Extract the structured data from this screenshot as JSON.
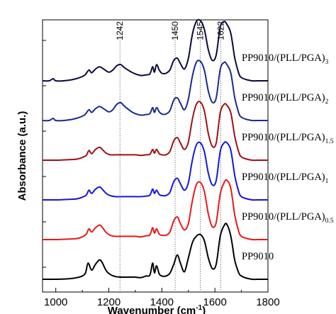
{
  "chart_data": {
    "type": "line",
    "xlabel": "Wavenumber (cm",
    "xlabel_sup": "-1",
    "xlabel_close": ")",
    "ylabel": "Absorbance (a.u.)",
    "xlim": [
      950,
      1800
    ],
    "xticks": [
      1000,
      1200,
      1400,
      1600,
      1800
    ],
    "grid": false,
    "reference_lines": [
      {
        "x": 1242,
        "label": "1242"
      },
      {
        "x": 1450,
        "label": "1450"
      },
      {
        "x": 1545,
        "label": "1545"
      },
      {
        "x": 1622,
        "label": "1622"
      }
    ],
    "series": [
      {
        "name": "PP9010",
        "sub": "",
        "color": "#000000",
        "offset": 0.0,
        "x": [
          950,
          1000,
          1050,
          1080,
          1100,
          1112,
          1122,
          1135,
          1150,
          1165,
          1175,
          1190,
          1205,
          1225,
          1250,
          1280,
          1300,
          1320,
          1340,
          1355,
          1365,
          1372,
          1380,
          1390,
          1400,
          1415,
          1430,
          1445,
          1458,
          1470,
          1485,
          1500,
          1515,
          1530,
          1545,
          1560,
          1575,
          1590,
          1605,
          1620,
          1635,
          1645,
          1660,
          1675,
          1690,
          1700,
          1720,
          1740,
          1760,
          1780,
          1800
        ],
        "y": [
          0.0,
          0.0,
          0.01,
          0.03,
          0.06,
          0.12,
          0.3,
          0.17,
          0.28,
          0.36,
          0.31,
          0.16,
          0.09,
          0.05,
          0.04,
          0.04,
          0.04,
          0.03,
          0.06,
          0.08,
          0.3,
          0.12,
          0.25,
          0.1,
          0.06,
          0.06,
          0.11,
          0.28,
          0.45,
          0.3,
          0.14,
          0.4,
          0.68,
          0.8,
          0.83,
          0.72,
          0.4,
          0.2,
          0.28,
          0.8,
          1.0,
          1.02,
          0.8,
          0.35,
          0.12,
          0.06,
          0.02,
          0.0,
          0.0,
          0.0,
          0.0
        ]
      },
      {
        "name": "PP9010/(PLL/PGA)",
        "sub": "0.5",
        "color": "#e8191a",
        "offset": 1.0,
        "x": [
          950,
          1000,
          1050,
          1080,
          1100,
          1115,
          1125,
          1135,
          1150,
          1165,
          1175,
          1190,
          1205,
          1225,
          1250,
          1280,
          1300,
          1320,
          1340,
          1355,
          1365,
          1372,
          1380,
          1390,
          1400,
          1415,
          1430,
          1445,
          1458,
          1470,
          1485,
          1500,
          1515,
          1530,
          1545,
          1560,
          1575,
          1590,
          1605,
          1620,
          1635,
          1645,
          1660,
          1675,
          1690,
          1700,
          1720,
          1740,
          1760,
          1780,
          1800
        ],
        "y": [
          0.0,
          0.0,
          0.01,
          0.02,
          0.05,
          0.1,
          0.2,
          0.14,
          0.22,
          0.27,
          0.23,
          0.13,
          0.08,
          0.06,
          0.06,
          0.06,
          0.06,
          0.05,
          0.07,
          0.09,
          0.22,
          0.12,
          0.2,
          0.1,
          0.08,
          0.08,
          0.14,
          0.35,
          0.42,
          0.3,
          0.18,
          0.3,
          0.72,
          1.02,
          1.06,
          0.9,
          0.48,
          0.24,
          0.32,
          0.85,
          1.06,
          1.1,
          0.95,
          0.45,
          0.15,
          0.06,
          0.02,
          0.0,
          0.0,
          0.0,
          0.0
        ]
      },
      {
        "name": "PP9010/(PLL/PGA)",
        "sub": "1",
        "color": "#1515e0",
        "offset": 2.0,
        "x": [
          950,
          1000,
          1050,
          1080,
          1100,
          1115,
          1125,
          1135,
          1150,
          1165,
          1175,
          1190,
          1205,
          1225,
          1250,
          1280,
          1300,
          1320,
          1340,
          1355,
          1365,
          1372,
          1380,
          1390,
          1400,
          1415,
          1430,
          1445,
          1458,
          1470,
          1485,
          1500,
          1515,
          1530,
          1545,
          1560,
          1575,
          1590,
          1605,
          1620,
          1635,
          1645,
          1660,
          1675,
          1690,
          1700,
          1720,
          1740,
          1760,
          1780,
          1800
        ],
        "y": [
          0.0,
          0.0,
          0.01,
          0.02,
          0.05,
          0.09,
          0.18,
          0.12,
          0.2,
          0.24,
          0.2,
          0.12,
          0.08,
          0.06,
          0.06,
          0.06,
          0.06,
          0.06,
          0.07,
          0.09,
          0.2,
          0.12,
          0.18,
          0.1,
          0.08,
          0.08,
          0.14,
          0.34,
          0.4,
          0.3,
          0.18,
          0.32,
          0.74,
          1.02,
          1.06,
          0.9,
          0.5,
          0.28,
          0.36,
          0.9,
          1.06,
          1.06,
          0.92,
          0.45,
          0.15,
          0.06,
          0.02,
          0.0,
          0.0,
          0.0,
          0.0
        ]
      },
      {
        "name": "PP9010/(PLL/PGA)",
        "sub": "1.5",
        "color": "#a01015",
        "offset": 3.0,
        "x": [
          950,
          1000,
          1050,
          1080,
          1100,
          1115,
          1125,
          1135,
          1150,
          1165,
          1175,
          1190,
          1205,
          1225,
          1250,
          1280,
          1300,
          1320,
          1340,
          1355,
          1365,
          1372,
          1380,
          1390,
          1400,
          1415,
          1430,
          1445,
          1458,
          1470,
          1485,
          1500,
          1515,
          1530,
          1545,
          1560,
          1575,
          1590,
          1605,
          1620,
          1635,
          1645,
          1660,
          1675,
          1690,
          1700,
          1720,
          1740,
          1760,
          1780,
          1800
        ],
        "y": [
          0.0,
          0.0,
          0.01,
          0.02,
          0.05,
          0.09,
          0.18,
          0.12,
          0.2,
          0.24,
          0.2,
          0.13,
          0.1,
          0.1,
          0.1,
          0.1,
          0.1,
          0.09,
          0.1,
          0.11,
          0.2,
          0.13,
          0.2,
          0.12,
          0.1,
          0.1,
          0.16,
          0.36,
          0.42,
          0.32,
          0.2,
          0.34,
          0.76,
          1.04,
          1.08,
          0.92,
          0.5,
          0.26,
          0.32,
          0.88,
          1.04,
          1.02,
          0.88,
          0.44,
          0.15,
          0.06,
          0.02,
          0.0,
          0.0,
          0.0,
          0.0
        ]
      },
      {
        "name": "PP9010/(PLL/PGA)",
        "sub": "2",
        "color": "#1a2a8c",
        "offset": 4.0,
        "x": [
          950,
          975,
          990,
          1000,
          1030,
          1060,
          1090,
          1110,
          1125,
          1135,
          1150,
          1165,
          1180,
          1200,
          1215,
          1230,
          1245,
          1260,
          1290,
          1320,
          1340,
          1355,
          1365,
          1372,
          1380,
          1390,
          1400,
          1415,
          1430,
          1445,
          1458,
          1470,
          1485,
          1500,
          1515,
          1530,
          1545,
          1560,
          1575,
          1590,
          1605,
          1620,
          1635,
          1645,
          1660,
          1675,
          1690,
          1700,
          1720,
          1740,
          1760,
          1780,
          1800
        ],
        "y": [
          0.0,
          0.0,
          0.04,
          0.0,
          0.0,
          0.02,
          0.06,
          0.11,
          0.2,
          0.15,
          0.22,
          0.26,
          0.22,
          0.16,
          0.2,
          0.3,
          0.33,
          0.26,
          0.15,
          0.1,
          0.11,
          0.13,
          0.24,
          0.15,
          0.24,
          0.16,
          0.12,
          0.12,
          0.18,
          0.38,
          0.42,
          0.32,
          0.2,
          0.4,
          0.82,
          1.08,
          1.1,
          0.94,
          0.55,
          0.34,
          0.42,
          0.95,
          1.08,
          1.04,
          0.88,
          0.42,
          0.14,
          0.06,
          0.02,
          0.0,
          0.0,
          0.0,
          0.0
        ]
      },
      {
        "name": "PP9010/(PLL/PGA)",
        "sub": "3",
        "color": "#0a0a3c",
        "offset": 5.0,
        "x": [
          950,
          975,
          990,
          1000,
          1030,
          1060,
          1090,
          1110,
          1125,
          1135,
          1150,
          1165,
          1180,
          1200,
          1215,
          1230,
          1245,
          1260,
          1290,
          1320,
          1340,
          1355,
          1365,
          1372,
          1380,
          1390,
          1400,
          1415,
          1430,
          1445,
          1458,
          1470,
          1485,
          1500,
          1515,
          1530,
          1545,
          1560,
          1575,
          1590,
          1605,
          1620,
          1635,
          1645,
          1660,
          1675,
          1690,
          1700,
          1720,
          1740,
          1760,
          1780,
          1800
        ],
        "y": [
          0.0,
          0.0,
          0.04,
          0.0,
          0.0,
          0.02,
          0.06,
          0.11,
          0.2,
          0.15,
          0.22,
          0.26,
          0.22,
          0.16,
          0.2,
          0.28,
          0.3,
          0.24,
          0.15,
          0.1,
          0.11,
          0.13,
          0.26,
          0.16,
          0.3,
          0.2,
          0.14,
          0.14,
          0.2,
          0.38,
          0.42,
          0.32,
          0.22,
          0.42,
          0.86,
          1.1,
          1.12,
          0.96,
          0.58,
          0.38,
          0.48,
          1.0,
          1.1,
          1.05,
          0.88,
          0.42,
          0.14,
          0.06,
          0.02,
          0.0,
          0.0,
          0.0,
          0.0
        ]
      }
    ]
  }
}
